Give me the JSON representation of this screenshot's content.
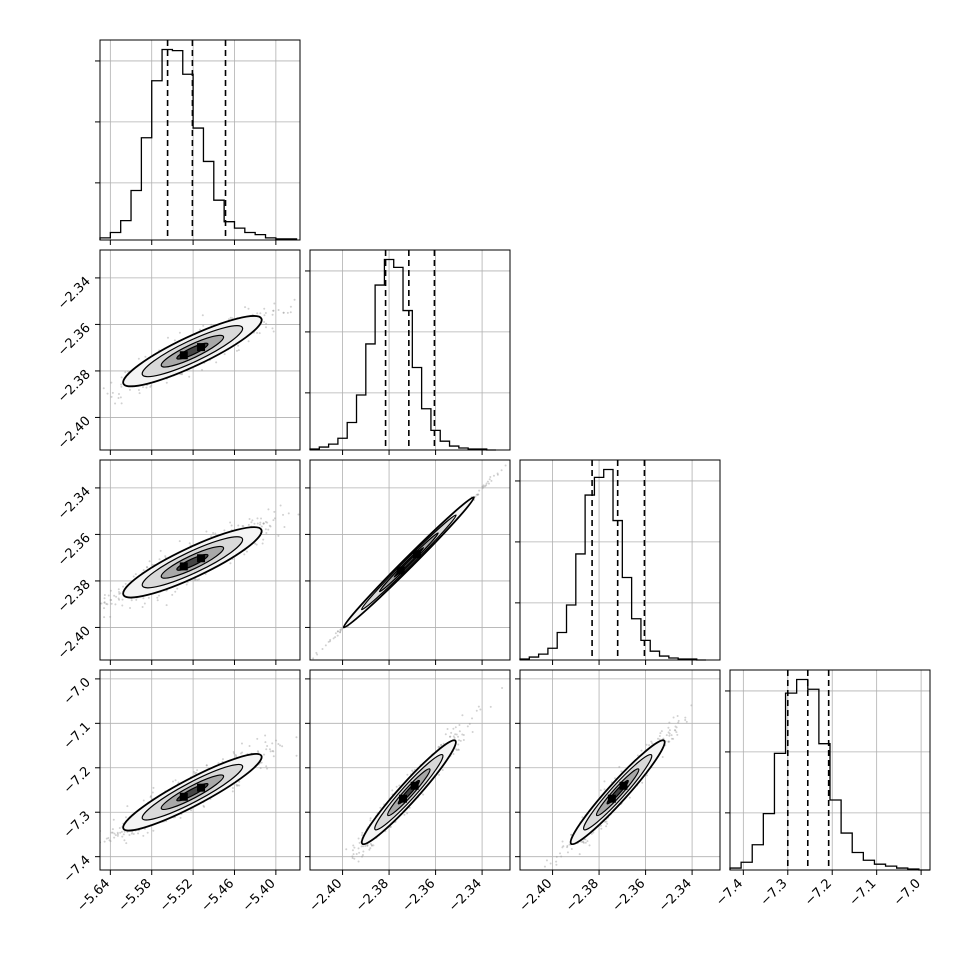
{
  "chart_data": {
    "type": "corner",
    "parameters": 4,
    "grid": true,
    "colors": {
      "line": "#000000",
      "grid": "#b0b0b0",
      "scatter": "#9a9a9a",
      "fill_outer": "#f4f4f4",
      "fill_mid": "#d9d9d9",
      "fill_inner": "#a8a8a8",
      "fill_core": "#444444"
    },
    "axes": [
      {
        "range": [
          -5.655,
          -5.365
        ],
        "ticks": [
          -5.64,
          -5.58,
          -5.52,
          -5.46,
          -5.4
        ],
        "tick_labels": [
          "−5.64",
          "−5.58",
          "−5.52",
          "−5.46",
          "−5.40"
        ]
      },
      {
        "range": [
          -2.414,
          -2.328
        ],
        "ticks": [
          -2.4,
          -2.38,
          -2.36,
          -2.34
        ],
        "tick_labels": [
          "−2.40",
          "−2.38",
          "−2.36",
          "−2.34"
        ]
      },
      {
        "range": [
          -2.414,
          -2.328
        ],
        "ticks": [
          -2.4,
          -2.38,
          -2.36,
          -2.34
        ],
        "tick_labels": [
          "−2.40",
          "−2.38",
          "−2.36",
          "−2.34"
        ]
      },
      {
        "range": [
          -7.43,
          -6.98
        ],
        "ticks": [
          -7.4,
          -7.3,
          -7.2,
          -7.1,
          -7.0
        ],
        "tick_labels": [
          "−7.4",
          "−7.3",
          "−7.2",
          "−7.1",
          "−7.0"
        ]
      }
    ],
    "histograms": [
      {
        "param": 0,
        "bins": [
          -5.655,
          -5.64,
          -5.625,
          -5.61,
          -5.595,
          -5.58,
          -5.565,
          -5.55,
          -5.535,
          -5.52,
          -5.505,
          -5.49,
          -5.475,
          -5.46,
          -5.445,
          -5.43,
          -5.415,
          -5.4,
          -5.385,
          -5.37
        ],
        "counts": [
          2,
          7,
          18,
          46,
          95,
          148,
          177,
          176,
          154,
          104,
          73,
          37,
          17,
          11,
          7,
          5,
          2,
          1,
          1
        ],
        "quantiles": [
          -5.557,
          -5.521,
          -5.473
        ]
      },
      {
        "param": 1,
        "bins": [
          -2.414,
          -2.41,
          -2.406,
          -2.402,
          -2.398,
          -2.394,
          -2.39,
          -2.386,
          -2.382,
          -2.378,
          -2.374,
          -2.37,
          -2.366,
          -2.362,
          -2.358,
          -2.354,
          -2.35,
          -2.346,
          -2.342,
          -2.338,
          -2.334
        ],
        "counts": [
          1,
          3,
          6,
          12,
          28,
          56,
          108,
          168,
          194,
          186,
          142,
          84,
          42,
          20,
          9,
          4,
          2,
          1,
          1,
          0
        ],
        "quantiles": [
          -2.3815,
          -2.3715,
          -2.3605
        ]
      },
      {
        "param": 2,
        "bins": [
          -2.414,
          -2.41,
          -2.406,
          -2.402,
          -2.398,
          -2.394,
          -2.39,
          -2.386,
          -2.382,
          -2.378,
          -2.374,
          -2.37,
          -2.366,
          -2.362,
          -2.358,
          -2.354,
          -2.35,
          -2.346,
          -2.342,
          -2.338,
          -2.334
        ],
        "counts": [
          1,
          3,
          6,
          12,
          28,
          56,
          108,
          168,
          186,
          194,
          142,
          84,
          42,
          20,
          9,
          4,
          2,
          1,
          1,
          0
        ],
        "quantiles": [
          -2.383,
          -2.372,
          -2.3605
        ]
      },
      {
        "param": 3,
        "bins": [
          -7.43,
          -7.405,
          -7.38,
          -7.355,
          -7.33,
          -7.305,
          -7.28,
          -7.255,
          -7.23,
          -7.205,
          -7.18,
          -7.155,
          -7.13,
          -7.105,
          -7.08,
          -7.055,
          -7.03,
          -7.005,
          -6.98
        ],
        "counts": [
          2,
          8,
          26,
          58,
          120,
          182,
          196,
          186,
          130,
          72,
          38,
          18,
          10,
          6,
          4,
          2,
          1,
          0
        ],
        "quantiles": [
          -7.3,
          -7.255,
          -7.208
        ]
      }
    ],
    "pairs": [
      {
        "x": 0,
        "y": 1,
        "center": [
          -5.521,
          -2.3715
        ],
        "slope": 0.14,
        "spread": [
          0.05,
          0.0035
        ]
      },
      {
        "x": 0,
        "y": 2,
        "center": [
          -5.521,
          -2.372
        ],
        "slope": 0.14,
        "spread": [
          0.05,
          0.0035
        ]
      },
      {
        "x": 1,
        "y": 2,
        "center": [
          -2.3715,
          -2.372
        ],
        "slope": 1.0,
        "spread": [
          0.014,
          0.0006
        ]
      },
      {
        "x": 0,
        "y": 3,
        "center": [
          -5.521,
          -7.255
        ],
        "slope": 0.82,
        "spread": [
          0.05,
          0.017
        ]
      },
      {
        "x": 1,
        "y": 3,
        "center": [
          -2.3715,
          -7.255
        ],
        "slope": 5.8,
        "spread": [
          0.01,
          0.016
        ]
      },
      {
        "x": 2,
        "y": 3,
        "center": [
          -2.372,
          -7.255
        ],
        "slope": 5.8,
        "spread": [
          0.01,
          0.016
        ]
      }
    ]
  }
}
